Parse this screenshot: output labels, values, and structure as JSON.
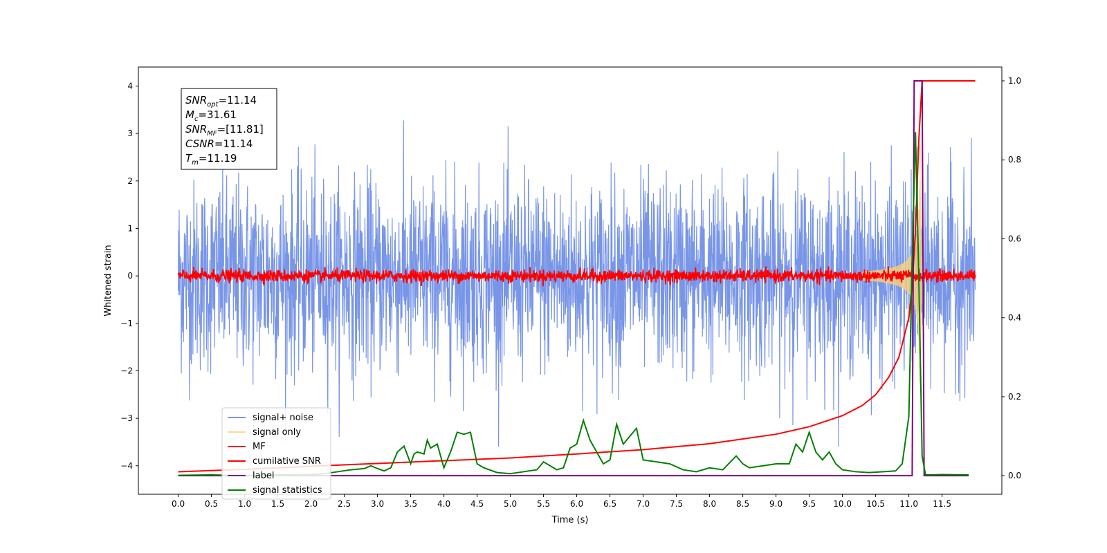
{
  "chart_data": {
    "type": "line",
    "xlabel": "Time (s)",
    "ylabel": "Whitened strain",
    "xlim": [
      -0.6,
      12.4
    ],
    "ylim": [
      -4.6,
      4.4
    ],
    "y2lim": [
      -0.047,
      1.035
    ],
    "x_ticks": [
      "0.0",
      "0.5",
      "1.0",
      "1.5",
      "2.0",
      "2.5",
      "3.0",
      "3.5",
      "4.0",
      "4.5",
      "5.0",
      "5.5",
      "6.0",
      "6.5",
      "7.0",
      "7.5",
      "8.0",
      "8.5",
      "9.0",
      "9.5",
      "10.0",
      "10.5",
      "11.0",
      "11.5"
    ],
    "y_ticks": [
      "4",
      "3",
      "2",
      "1",
      "0",
      "−1",
      "−2",
      "−3",
      "−4"
    ],
    "y2_ticks": [
      "1.0",
      "0.8",
      "0.6",
      "0.4",
      "0.2",
      "0.0"
    ],
    "legend_position": "lower-left",
    "legend": [
      {
        "label": "signal+ noise",
        "color": "#7895e8"
      },
      {
        "label": "signal only",
        "color": "#f7cf7a"
      },
      {
        "label": "MF",
        "color": "#ff0000"
      },
      {
        "label": "cumilative SNR",
        "color": "#ff0000"
      },
      {
        "label": "label",
        "color": "#800080"
      },
      {
        "label": "signal statistics",
        "color": "#008000"
      }
    ],
    "annotation": [
      {
        "name": "SNR",
        "sub": "opt",
        "value": "=11.14"
      },
      {
        "name": "M",
        "sub": "c",
        "value": "=31.61"
      },
      {
        "name": "SNR",
        "sub": "MF",
        "value": "=[11.81]"
      },
      {
        "name": "CSNR",
        "sub": "",
        "value": "=11.14"
      },
      {
        "name": "T",
        "sub": "m",
        "value": "=11.19"
      }
    ],
    "series": [
      {
        "name": "signal+ noise",
        "axis": "left",
        "kind": "noise",
        "x_range": [
          0.0,
          12.0
        ],
        "typical_amplitude": 1.8,
        "peak_max": 4.0,
        "peak_min": -3.6
      },
      {
        "name": "signal only",
        "axis": "left",
        "kind": "chirp",
        "x_range": [
          10.3,
          11.3
        ],
        "peak_amplitude": 2.9,
        "peak_x": 11.17
      },
      {
        "name": "MF",
        "axis": "left",
        "kind": "noise",
        "x_range": [
          0.0,
          12.0
        ],
        "typical_amplitude": 0.12,
        "peak_max": 0.2
      },
      {
        "name": "cumilative SNR",
        "axis": "right",
        "x": [
          0.0,
          1.0,
          2.0,
          3.0,
          4.0,
          5.0,
          6.0,
          7.0,
          8.0,
          9.0,
          9.5,
          10.0,
          10.3,
          10.5,
          10.7,
          10.85,
          11.0,
          11.05,
          11.1,
          11.15,
          11.2,
          11.25,
          11.3,
          12.0
        ],
        "values": [
          0.01,
          0.016,
          0.024,
          0.031,
          0.038,
          0.045,
          0.055,
          0.066,
          0.081,
          0.105,
          0.124,
          0.152,
          0.178,
          0.205,
          0.25,
          0.3,
          0.4,
          0.48,
          0.62,
          0.85,
          1.0,
          1.0,
          1.0,
          1.0
        ]
      },
      {
        "name": "label",
        "axis": "right",
        "x": [
          0.0,
          11.05,
          11.08,
          11.2,
          11.23,
          11.9
        ],
        "values": [
          0.0,
          0.0,
          1.0,
          1.0,
          0.0,
          0.0
        ]
      },
      {
        "name": "signal statistics",
        "axis": "right",
        "x": [
          0.0,
          0.5,
          1.0,
          1.5,
          2.0,
          2.2,
          2.4,
          2.6,
          2.8,
          2.9,
          3.0,
          3.1,
          3.2,
          3.3,
          3.4,
          3.5,
          3.55,
          3.6,
          3.7,
          3.75,
          3.8,
          3.9,
          4.0,
          4.1,
          4.2,
          4.3,
          4.4,
          4.5,
          4.6,
          4.8,
          5.0,
          5.2,
          5.4,
          5.5,
          5.6,
          5.7,
          5.8,
          5.9,
          6.0,
          6.1,
          6.2,
          6.3,
          6.4,
          6.5,
          6.6,
          6.7,
          6.8,
          6.9,
          7.0,
          7.2,
          7.4,
          7.6,
          7.8,
          8.0,
          8.2,
          8.4,
          8.5,
          8.6,
          8.8,
          9.0,
          9.2,
          9.3,
          9.4,
          9.5,
          9.6,
          9.7,
          9.8,
          9.9,
          10.0,
          10.2,
          10.4,
          10.6,
          10.8,
          10.9,
          11.0,
          11.05,
          11.1,
          11.15,
          11.2,
          11.25,
          11.3,
          11.5,
          11.9
        ],
        "values": [
          0.001,
          0.002,
          0.0,
          0.002,
          0.003,
          0.005,
          0.01,
          0.015,
          0.018,
          0.025,
          0.018,
          0.012,
          0.02,
          0.06,
          0.075,
          0.03,
          0.055,
          0.06,
          0.055,
          0.09,
          0.07,
          0.08,
          0.02,
          0.06,
          0.11,
          0.105,
          0.11,
          0.03,
          0.02,
          0.008,
          0.005,
          0.01,
          0.015,
          0.035,
          0.025,
          0.015,
          0.02,
          0.07,
          0.08,
          0.14,
          0.09,
          0.06,
          0.03,
          0.04,
          0.13,
          0.08,
          0.1,
          0.12,
          0.04,
          0.035,
          0.03,
          0.015,
          0.01,
          0.02,
          0.015,
          0.05,
          0.03,
          0.02,
          0.025,
          0.03,
          0.03,
          0.08,
          0.06,
          0.11,
          0.06,
          0.04,
          0.06,
          0.03,
          0.015,
          0.01,
          0.008,
          0.01,
          0.012,
          0.03,
          0.15,
          0.55,
          0.87,
          0.5,
          0.05,
          0.003,
          0.002,
          0.003,
          0.002
        ]
      }
    ]
  }
}
